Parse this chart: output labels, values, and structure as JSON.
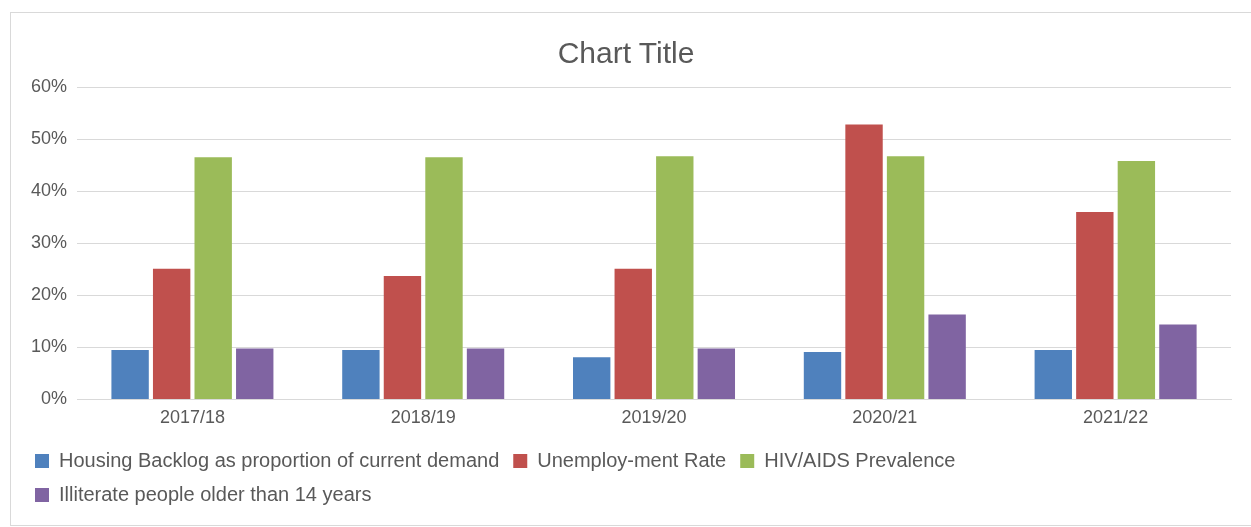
{
  "chart_data": {
    "type": "bar",
    "title": "Chart Title",
    "categories": [
      "2017/18",
      "2018/19",
      "2019/20",
      "2020/21",
      "2021/22"
    ],
    "series": [
      {
        "name": "Housing Backlog as proportion of current demand",
        "color": "#4f81bd",
        "values": [
          9.5,
          9.5,
          8.1,
          9.1,
          9.5
        ]
      },
      {
        "name": "Unemploy-ment Rate",
        "color": "#c0504d",
        "values": [
          25.1,
          23.7,
          25.1,
          52.8,
          36.0
        ]
      },
      {
        "name": "HIV/AIDS Prevalence",
        "color": "#9bbb59",
        "values": [
          46.5,
          46.5,
          46.7,
          46.7,
          45.8
        ]
      },
      {
        "name": "Illiterate people older than 14 years",
        "color": "#8064a2",
        "values": [
          9.8,
          9.8,
          9.8,
          16.3,
          14.4
        ]
      }
    ],
    "ylim": [
      0,
      60
    ],
    "yticks": [
      {
        "value": 0,
        "label": "0%"
      },
      {
        "value": 10,
        "label": "10%"
      },
      {
        "value": 20,
        "label": "20%"
      },
      {
        "value": 30,
        "label": "30%"
      },
      {
        "value": 40,
        "label": "40%"
      },
      {
        "value": 50,
        "label": "50%"
      },
      {
        "value": 60,
        "label": "60%"
      }
    ],
    "grid": "y",
    "legend": "bottom"
  }
}
